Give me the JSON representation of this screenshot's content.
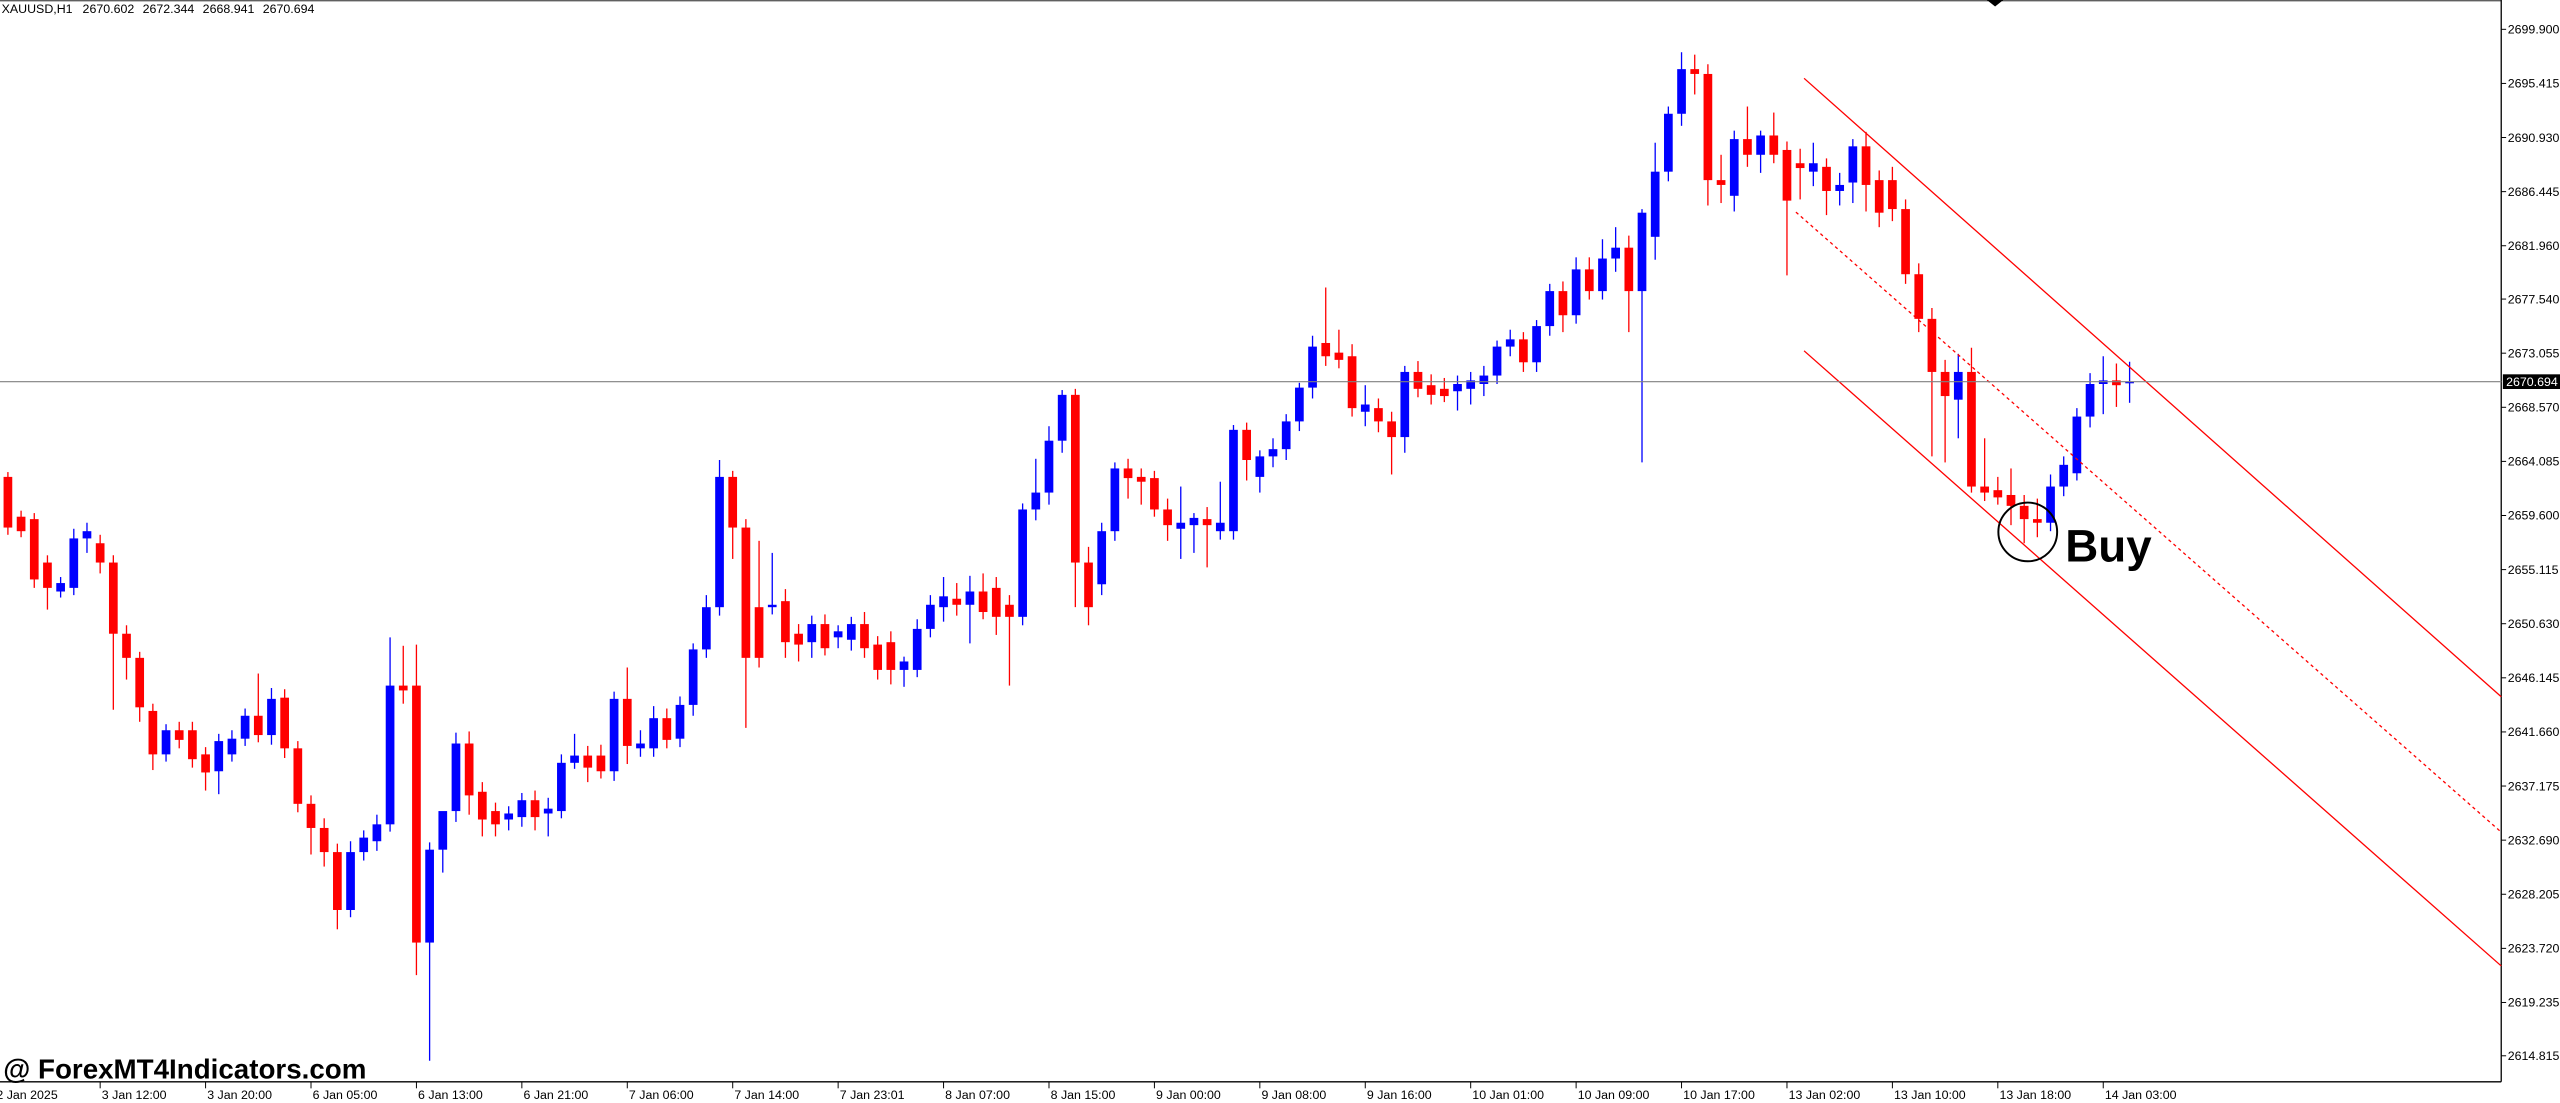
{
  "chart_data": {
    "type": "candlestick",
    "symbol": "XAUUSD,H1",
    "up_color": "#0000ff",
    "down_color": "#ff0000",
    "annotation": "Buy",
    "watermark": "@ ForexMT4Indicators.com",
    "open": [
      2662.8,
      2659.5,
      2659.3,
      2655.7,
      2653.3,
      2653.6,
      2657.7,
      2657.3,
      2655.7,
      2649.8,
      2647.8,
      2643.4,
      2639.8,
      2641.8,
      2641.8,
      2639.8,
      2638.4,
      2639.8,
      2641.1,
      2643.0,
      2641.4,
      2644.5,
      2640.3,
      2635.7,
      2633.7,
      2631.7,
      2626.9,
      2631.7,
      2632.6,
      2634.0,
      2645.5,
      2645.5,
      2624.2,
      2631.9,
      2635.1,
      2640.7,
      2636.7,
      2635.1,
      2634.4,
      2634.6,
      2636.0,
      2634.9,
      2635.1,
      2639.1,
      2639.7,
      2639.7,
      2638.4,
      2644.4,
      2640.3,
      2640.3,
      2642.8,
      2641.1,
      2643.9,
      2648.5,
      2652.0,
      2662.8,
      2658.6,
      2652.0,
      2652.0,
      2652.5,
      2649.8,
      2649.1,
      2650.6,
      2649.5,
      2649.3,
      2650.6,
      2648.9,
      2649.1,
      2646.8,
      2646.8,
      2650.2,
      2652.0,
      2652.7,
      2652.2,
      2653.3,
      2653.6,
      2652.2,
      2651.2,
      2660.1,
      2661.5,
      2665.8,
      2669.6,
      2655.7,
      2653.9,
      2658.3,
      2663.5,
      2662.8,
      2662.7,
      2660.1,
      2658.5,
      2658.8,
      2659.3,
      2658.3,
      2658.3,
      2666.7,
      2662.8,
      2664.5,
      2665.1,
      2667.4,
      2670.2,
      2673.9,
      2673.1,
      2672.8,
      2668.2,
      2668.5,
      2667.4,
      2666.1,
      2671.5,
      2670.4,
      2670.1,
      2669.9,
      2670.1,
      2670.5,
      2671.2,
      2673.6,
      2674.2,
      2672.3,
      2675.3,
      2678.2,
      2676.2,
      2680.0,
      2678.2,
      2680.9,
      2681.8,
      2678.2,
      2682.7,
      2688.1,
      2692.9,
      2696.6,
      2696.2,
      2687.4,
      2686.1,
      2690.8,
      2689.5,
      2691.1,
      2689.9,
      2688.8,
      2688.1,
      2688.5,
      2686.5,
      2687.2,
      2690.2,
      2687.4,
      2687.4,
      2685.0,
      2679.6,
      2675.9,
      2671.5,
      2669.2,
      2671.5,
      2662.0,
      2661.7,
      2661.3,
      2660.4,
      2659.3,
      2659.0,
      2662.0,
      2663.1,
      2667.8,
      2670.5,
      2670.8,
      2670.602
    ],
    "high": [
      2663.2,
      2660.0,
      2659.8,
      2656.3,
      2654.5,
      2658.5,
      2659.0,
      2658.0,
      2656.3,
      2650.5,
      2648.3,
      2644.0,
      2642.3,
      2642.5,
      2642.5,
      2640.4,
      2641.5,
      2641.8,
      2643.6,
      2646.5,
      2645.3,
      2645.2,
      2640.9,
      2636.4,
      2634.5,
      2632.4,
      2632.6,
      2633.5,
      2634.8,
      2649.5,
      2648.8,
      2648.9,
      2632.5,
      2634.5,
      2641.6,
      2641.7,
      2637.5,
      2635.8,
      2635.5,
      2636.6,
      2636.8,
      2636.2,
      2639.8,
      2641.5,
      2640.5,
      2640.6,
      2645.0,
      2647.0,
      2641.8,
      2643.8,
      2643.6,
      2644.6,
      2649.0,
      2653.0,
      2664.2,
      2663.3,
      2659.3,
      2657.5,
      2656.5,
      2653.5,
      2650.6,
      2651.3,
      2651.4,
      2650.5,
      2651.2,
      2651.6,
      2649.6,
      2650.0,
      2647.9,
      2651.0,
      2653.0,
      2654.5,
      2654.0,
      2654.6,
      2654.8,
      2654.5,
      2653.0,
      2660.6,
      2664.3,
      2667.0,
      2670.0,
      2670.1,
      2657.0,
      2659.0,
      2664.0,
      2664.3,
      2663.5,
      2663.3,
      2661.0,
      2662.0,
      2659.8,
      2660.3,
      2662.4,
      2667.1,
      2667.3,
      2665.0,
      2666.0,
      2668.0,
      2670.6,
      2674.5,
      2678.5,
      2675.0,
      2673.8,
      2670.4,
      2669.3,
      2668.2,
      2672.0,
      2672.4,
      2671.3,
      2671.0,
      2671.2,
      2671.5,
      2672.0,
      2674.1,
      2675.0,
      2674.8,
      2675.8,
      2678.8,
      2679.0,
      2681.0,
      2681.0,
      2682.5,
      2683.5,
      2682.8,
      2685.0,
      2690.5,
      2693.5,
      2698.0,
      2697.8,
      2697.0,
      2689.5,
      2691.5,
      2693.5,
      2691.5,
      2693.0,
      2690.6,
      2690.0,
      2690.5,
      2689.2,
      2688.0,
      2690.8,
      2691.4,
      2688.2,
      2688.5,
      2685.8,
      2680.5,
      2676.8,
      2672.5,
      2673.0,
      2673.5,
      2666.0,
      2662.8,
      2663.5,
      2661.3,
      2661.0,
      2663.0,
      2664.5,
      2668.5,
      2671.4,
      2672.8,
      2672.2,
      2672.344
    ],
    "low": [
      2658.0,
      2657.8,
      2653.6,
      2651.8,
      2652.8,
      2653.0,
      2656.5,
      2654.8,
      2643.5,
      2646.0,
      2642.5,
      2638.5,
      2639.2,
      2640.3,
      2638.7,
      2636.8,
      2636.5,
      2639.2,
      2640.5,
      2640.8,
      2640.6,
      2639.5,
      2635.0,
      2631.5,
      2630.5,
      2625.3,
      2626.3,
      2631.0,
      2631.8,
      2633.4,
      2644.0,
      2621.5,
      2614.4,
      2630.0,
      2634.2,
      2634.8,
      2633.0,
      2633.0,
      2633.5,
      2633.8,
      2633.5,
      2633.0,
      2634.5,
      2638.6,
      2637.5,
      2637.8,
      2637.6,
      2639.0,
      2639.6,
      2639.6,
      2640.3,
      2640.4,
      2643.0,
      2647.8,
      2651.3,
      2656.0,
      2642.0,
      2647.0,
      2651.4,
      2647.8,
      2647.5,
      2647.8,
      2648.0,
      2648.6,
      2648.4,
      2647.8,
      2646.0,
      2645.6,
      2645.4,
      2646.2,
      2649.5,
      2650.8,
      2651.3,
      2649.0,
      2651.0,
      2649.7,
      2645.5,
      2650.5,
      2659.2,
      2660.5,
      2664.8,
      2652.0,
      2650.5,
      2653.0,
      2657.5,
      2661.0,
      2660.5,
      2659.5,
      2657.5,
      2656.0,
      2656.5,
      2655.3,
      2657.6,
      2657.6,
      2662.5,
      2661.5,
      2663.6,
      2664.2,
      2666.6,
      2669.3,
      2672.0,
      2671.8,
      2667.8,
      2667.0,
      2666.5,
      2663.0,
      2664.8,
      2669.4,
      2668.8,
      2669.0,
      2668.3,
      2668.8,
      2669.5,
      2670.5,
      2672.8,
      2671.5,
      2671.5,
      2674.5,
      2674.8,
      2675.5,
      2677.5,
      2677.5,
      2679.8,
      2674.8,
      2664.0,
      2680.8,
      2687.3,
      2691.9,
      2694.5,
      2685.3,
      2685.5,
      2684.8,
      2688.5,
      2688.0,
      2688.8,
      2679.5,
      2685.8,
      2686.9,
      2684.5,
      2685.3,
      2685.5,
      2684.8,
      2683.5,
      2684.0,
      2678.8,
      2674.8,
      2664.5,
      2664.0,
      2666.0,
      2661.5,
      2660.8,
      2660.5,
      2658.8,
      2657.3,
      2657.8,
      2658.3,
      2661.2,
      2662.5,
      2666.9,
      2668.0,
      2668.6,
      2668.941
    ],
    "close": [
      2658.6,
      2658.3,
      2654.3,
      2653.6,
      2654.0,
      2657.7,
      2658.3,
      2655.7,
      2649.8,
      2647.8,
      2643.7,
      2639.8,
      2641.8,
      2641.0,
      2639.4,
      2638.3,
      2640.9,
      2641.1,
      2643.0,
      2641.4,
      2644.4,
      2640.3,
      2635.7,
      2633.7,
      2631.7,
      2626.9,
      2631.7,
      2632.9,
      2634.0,
      2645.5,
      2645.1,
      2624.2,
      2631.9,
      2635.1,
      2640.7,
      2636.4,
      2634.4,
      2634.0,
      2634.9,
      2636.0,
      2634.6,
      2635.3,
      2639.1,
      2639.7,
      2638.7,
      2638.4,
      2644.4,
      2640.5,
      2640.7,
      2642.8,
      2641.0,
      2643.9,
      2648.5,
      2652.0,
      2662.8,
      2658.6,
      2647.8,
      2647.8,
      2652.2,
      2649.1,
      2648.9,
      2650.6,
      2648.6,
      2650.0,
      2650.6,
      2648.6,
      2646.8,
      2646.8,
      2647.5,
      2650.2,
      2652.2,
      2652.9,
      2652.2,
      2653.3,
      2651.6,
      2651.2,
      2651.2,
      2660.1,
      2661.5,
      2665.8,
      2669.6,
      2655.7,
      2652.0,
      2658.3,
      2663.5,
      2662.7,
      2662.4,
      2660.1,
      2658.8,
      2659.0,
      2659.4,
      2658.8,
      2659.0,
      2666.7,
      2664.2,
      2664.5,
      2665.1,
      2667.4,
      2670.2,
      2673.6,
      2672.8,
      2672.5,
      2668.5,
      2668.8,
      2667.4,
      2666.1,
      2671.5,
      2670.1,
      2669.6,
      2669.5,
      2670.5,
      2670.8,
      2671.2,
      2673.6,
      2674.2,
      2672.3,
      2675.3,
      2678.2,
      2676.2,
      2680.0,
      2678.2,
      2680.9,
      2681.8,
      2678.2,
      2684.7,
      2688.1,
      2692.9,
      2696.6,
      2696.2,
      2687.4,
      2687.0,
      2690.8,
      2689.5,
      2691.1,
      2689.5,
      2685.7,
      2688.4,
      2688.8,
      2686.5,
      2687.0,
      2690.2,
      2687.0,
      2684.7,
      2685.0,
      2679.6,
      2675.9,
      2671.5,
      2669.5,
      2671.5,
      2662.0,
      2661.5,
      2661.1,
      2660.4,
      2659.3,
      2659.0,
      2662.0,
      2663.8,
      2667.8,
      2670.5,
      2670.8,
      2670.4,
      2670.694
    ],
    "xlim": [
      -0.6,
      189.2
    ],
    "xticks": [
      {
        "value": -1,
        "label": "2 Jan 2025"
      },
      {
        "value": 7,
        "label": "3 Jan 12:00"
      },
      {
        "value": 15,
        "label": "3 Jan 20:00"
      },
      {
        "value": 23,
        "label": "6 Jan 05:00"
      },
      {
        "value": 31,
        "label": "6 Jan 13:00"
      },
      {
        "value": 39,
        "label": "6 Jan 21:00"
      },
      {
        "value": 47,
        "label": "7 Jan 06:00"
      },
      {
        "value": 55,
        "label": "7 Jan 14:00"
      },
      {
        "value": 63,
        "label": "7 Jan 23:01"
      },
      {
        "value": 71,
        "label": "8 Jan 07:00"
      },
      {
        "value": 79,
        "label": "8 Jan 15:00"
      },
      {
        "value": 87,
        "label": "9 Jan 00:00"
      },
      {
        "value": 95,
        "label": "9 Jan 08:00"
      },
      {
        "value": 103,
        "label": "9 Jan 16:00"
      },
      {
        "value": 111,
        "label": "10 Jan 01:00"
      },
      {
        "value": 119,
        "label": "10 Jan 09:00"
      },
      {
        "value": 127,
        "label": "10 Jan 17:00"
      },
      {
        "value": 135,
        "label": "13 Jan 02:00"
      },
      {
        "value": 143,
        "label": "13 Jan 10:00"
      },
      {
        "value": 151,
        "label": "13 Jan 18:00"
      },
      {
        "value": 159,
        "label": "14 Jan 03:00"
      }
    ],
    "ylim": [
      2612.66,
      2702.33
    ],
    "yticks": [
      {
        "value": 2699.9,
        "label": "2699.900"
      },
      {
        "value": 2695.415,
        "label": "2695.415"
      },
      {
        "value": 2690.93,
        "label": "2690.930"
      },
      {
        "value": 2686.445,
        "label": "2686.445"
      },
      {
        "value": 2681.96,
        "label": "2681.960"
      },
      {
        "value": 2677.54,
        "label": "2677.540"
      },
      {
        "value": 2673.055,
        "label": "2673.055"
      },
      {
        "value": 2668.57,
        "label": "2668.570"
      },
      {
        "value": 2664.085,
        "label": "2664.085"
      },
      {
        "value": 2659.6,
        "label": "2659.600"
      },
      {
        "value": 2655.115,
        "label": "2655.115"
      },
      {
        "value": 2650.63,
        "label": "2650.630"
      },
      {
        "value": 2646.145,
        "label": "2646.145"
      },
      {
        "value": 2641.66,
        "label": "2641.660"
      },
      {
        "value": 2637.175,
        "label": "2637.175"
      },
      {
        "value": 2632.69,
        "label": "2632.690"
      },
      {
        "value": 2628.205,
        "label": "2628.205"
      },
      {
        "value": 2623.72,
        "label": "2623.720"
      },
      {
        "value": 2619.235,
        "label": "2619.235"
      },
      {
        "value": 2614.815,
        "label": "2614.815"
      }
    ]
  }
}
